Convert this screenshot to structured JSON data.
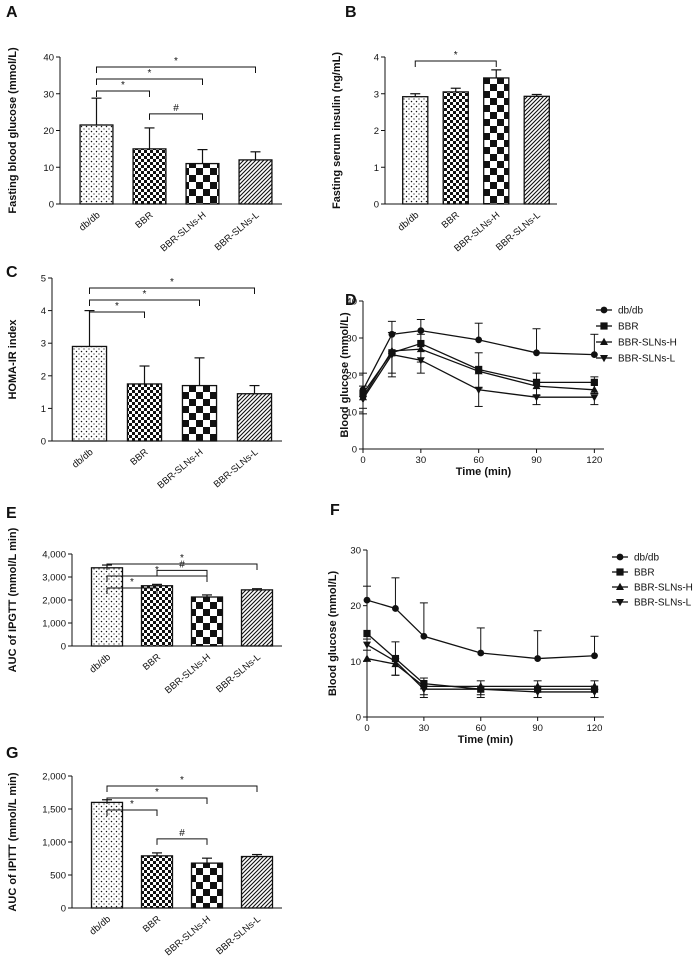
{
  "chart_data": [
    {
      "panel": "A",
      "type": "bar",
      "ylabel": "Fasting blood glucose (mmol/L)",
      "categories": [
        "db/db",
        "BBR",
        "BBR-SLNs-H",
        "BBR-SLNs-L"
      ],
      "values": [
        21.5,
        15,
        11,
        12
      ],
      "errors": [
        7.3,
        5.7,
        3.8,
        2.2
      ],
      "ylim": [
        0,
        40
      ],
      "yticks": [
        "0",
        "10",
        "20",
        "30",
        "40"
      ],
      "patterns": [
        "dots",
        "check-small",
        "check-big",
        "diag"
      ],
      "brackets": [
        {
          "from": 0,
          "to": 1,
          "mark": "*"
        },
        {
          "from": 0,
          "to": 2,
          "mark": "*"
        },
        {
          "from": 0,
          "to": 3,
          "mark": "*"
        },
        {
          "from": 1,
          "to": 2,
          "mark": "#"
        }
      ]
    },
    {
      "panel": "B",
      "type": "bar",
      "ylabel": "Fasting serum insulin (ng/mL)",
      "categories": [
        "db/db",
        "BBR",
        "BBR-SLNs-H",
        "BBR-SLNs-L"
      ],
      "values": [
        2.92,
        3.05,
        3.43,
        2.93
      ],
      "errors": [
        0.08,
        0.1,
        0.22,
        0.05
      ],
      "ylim": [
        0,
        4
      ],
      "yticks": [
        "0",
        "1",
        "2",
        "3",
        "4"
      ],
      "patterns": [
        "dots",
        "check-small",
        "check-big",
        "diag"
      ],
      "brackets": [
        {
          "from": 0,
          "to": 2,
          "mark": "*"
        }
      ]
    },
    {
      "panel": "C",
      "type": "bar",
      "ylabel": "HOMA-IR index",
      "categories": [
        "db/db",
        "BBR",
        "BBR-SLNs-H",
        "BBR-SLNs-L"
      ],
      "values": [
        2.9,
        1.75,
        1.7,
        1.45
      ],
      "errors": [
        1.1,
        0.55,
        0.85,
        0.25
      ],
      "ylim": [
        0,
        5
      ],
      "yticks": [
        "0",
        "1",
        "2",
        "3",
        "4",
        "5"
      ],
      "patterns": [
        "dots",
        "check-small",
        "check-big",
        "diag"
      ],
      "brackets": [
        {
          "from": 0,
          "to": 1,
          "mark": "*"
        },
        {
          "from": 0,
          "to": 2,
          "mark": "*"
        },
        {
          "from": 0,
          "to": 3,
          "mark": "*"
        }
      ]
    },
    {
      "panel": "D",
      "type": "line",
      "xlabel": "Time (min)",
      "ylabel": "Blood glucose (mmol/L)",
      "x": [
        0,
        15,
        30,
        60,
        90,
        120
      ],
      "xticks": [
        "0",
        "30",
        "60",
        "90",
        "120"
      ],
      "xlim": [
        0,
        125
      ],
      "ylim": [
        0,
        40
      ],
      "yticks": [
        "0",
        "10",
        "20",
        "30",
        "40"
      ],
      "legend_position": "right",
      "series": [
        {
          "name": "db/db",
          "marker": "circle",
          "values": [
            16,
            31,
            32,
            29.5,
            26,
            25.5
          ],
          "errors": [
            4.5,
            3.5,
            3,
            4.5,
            6.5,
            5.5
          ]
        },
        {
          "name": "BBR",
          "marker": "square",
          "values": [
            15,
            26,
            28.5,
            21.5,
            18,
            18
          ],
          "errors": [
            4,
            6.5,
            5,
            5,
            3.5,
            3
          ]
        },
        {
          "name": "BBR-SLNs-H",
          "marker": "triangle-up",
          "values": [
            14,
            26.5,
            27,
            21,
            17,
            16
          ],
          "errors": [
            3,
            5,
            4,
            5,
            3.5,
            3.5
          ]
        },
        {
          "name": "BBR-SLNs-L",
          "marker": "triangle-down",
          "values": [
            13.5,
            25.5,
            24,
            16,
            14,
            14
          ],
          "errors": [
            4,
            5,
            3.5,
            4.5,
            2,
            2
          ]
        }
      ]
    },
    {
      "panel": "E",
      "type": "bar",
      "ylabel": "AUC of IPGTT (mmol/L min)",
      "categories": [
        "db/db",
        "BBR",
        "BBR-SLNs-H",
        "BBR-SLNs-L"
      ],
      "values": [
        3400,
        2620,
        2130,
        2440
      ],
      "errors": [
        120,
        60,
        90,
        50
      ],
      "ylim": [
        0,
        4000
      ],
      "yticks": [
        "0",
        "1,000",
        "2,000",
        "3,000",
        "4,000"
      ],
      "patterns": [
        "dots",
        "check-small",
        "check-big",
        "diag"
      ],
      "brackets": [
        {
          "from": 0,
          "to": 1,
          "mark": "*"
        },
        {
          "from": 0,
          "to": 2,
          "mark": "*"
        },
        {
          "from": 0,
          "to": 3,
          "mark": "*"
        },
        {
          "from": 1,
          "to": 2,
          "mark": "#"
        }
      ]
    },
    {
      "panel": "F",
      "type": "line",
      "xlabel": "Time (min)",
      "ylabel": "Blood glucose (mmol/L)",
      "x": [
        0,
        15,
        30,
        60,
        90,
        120
      ],
      "xticks": [
        "0",
        "30",
        "60",
        "90",
        "120"
      ],
      "xlim": [
        0,
        125
      ],
      "ylim": [
        0,
        30
      ],
      "yticks": [
        "0",
        "10",
        "20",
        "30"
      ],
      "legend_position": "right",
      "series": [
        {
          "name": "db/db",
          "marker": "circle",
          "values": [
            21,
            19.5,
            14.5,
            11.5,
            10.5,
            11
          ],
          "errors": [
            2.5,
            5.5,
            6,
            4.5,
            5,
            3.5
          ]
        },
        {
          "name": "BBR",
          "marker": "square",
          "values": [
            15,
            10.5,
            6,
            5,
            5,
            5
          ],
          "errors": [
            3,
            3,
            2.5,
            1.5,
            1.5,
            1.5
          ]
        },
        {
          "name": "BBR-SLNs-H",
          "marker": "triangle-up",
          "values": [
            10.5,
            9.5,
            5.5,
            5.5,
            5.5,
            5.5
          ],
          "errors": [
            3.5,
            4,
            1.5,
            1,
            1,
            1
          ]
        },
        {
          "name": "BBR-SLNs-L",
          "marker": "triangle-down",
          "values": [
            13,
            10,
            5,
            5,
            4.5,
            4.5
          ],
          "errors": [
            3,
            2.5,
            1,
            1,
            1,
            1
          ]
        }
      ]
    },
    {
      "panel": "G",
      "type": "bar",
      "ylabel": "AUC of IPITT (mmol/L min)",
      "categories": [
        "db/db",
        "BBR",
        "BBR-SLNs-H",
        "BBR-SLNs-L"
      ],
      "values": [
        1600,
        790,
        680,
        780
      ],
      "errors": [
        40,
        45,
        75,
        30
      ],
      "ylim": [
        0,
        2000
      ],
      "yticks": [
        "0",
        "500",
        "1,000",
        "1,500",
        "2,000"
      ],
      "patterns": [
        "dots",
        "check-small",
        "check-big",
        "diag"
      ],
      "brackets": [
        {
          "from": 0,
          "to": 1,
          "mark": "*"
        },
        {
          "from": 0,
          "to": 2,
          "mark": "*"
        },
        {
          "from": 0,
          "to": 3,
          "mark": "*"
        },
        {
          "from": 1,
          "to": 2,
          "mark": "#"
        }
      ]
    }
  ]
}
